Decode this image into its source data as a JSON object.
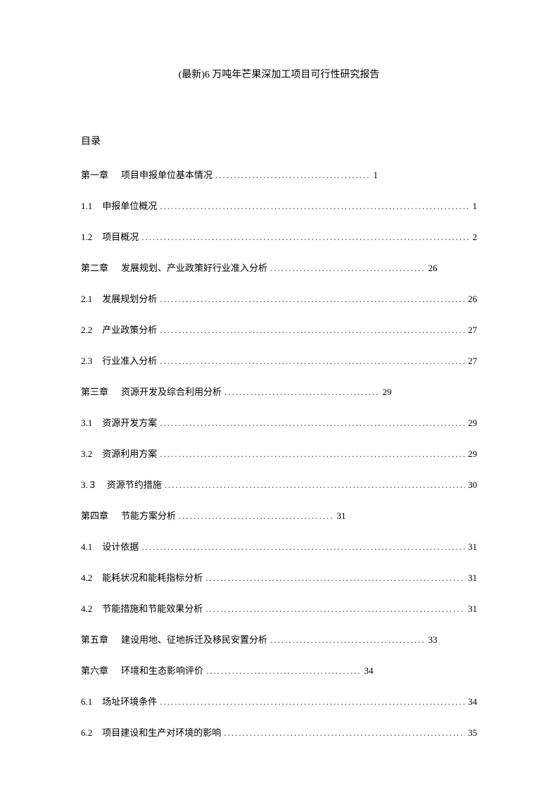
{
  "title": "(最新)6 万吨年芒果深加工项目可行性研究报告",
  "tocHeading": "目录",
  "entries": [
    {
      "type": "chapter",
      "num": "第一章",
      "label": "项目申报单位基本情况",
      "page": "1",
      "fill": false
    },
    {
      "type": "section",
      "num": "1.1",
      "label": "申报单位概况",
      "page": "1",
      "fill": true
    },
    {
      "type": "section",
      "num": "1.2",
      "label": "项目概况",
      "page": "2",
      "fill": true
    },
    {
      "type": "chapter",
      "num": "第二章",
      "label": "发展规划、产业政策好行业准入分析",
      "page": "26",
      "fill": false
    },
    {
      "type": "section",
      "num": "2.1",
      "label": "发展规划分析",
      "page": "26",
      "fill": true
    },
    {
      "type": "section",
      "num": "2.2",
      "label": "产业政策分析",
      "page": "27",
      "fill": true
    },
    {
      "type": "section",
      "num": "2.3",
      "label": "行业准入分析",
      "page": "27",
      "fill": true
    },
    {
      "type": "chapter",
      "num": "第三章",
      "label": "资源开发及综合利用分析",
      "page": "29",
      "fill": false
    },
    {
      "type": "section",
      "num": "3.1",
      "label": "资源开发方案",
      "page": "29",
      "fill": true
    },
    {
      "type": "section",
      "num": "3.2",
      "label": "资源利用方案",
      "page": "29",
      "fill": true
    },
    {
      "type": "section",
      "num": "3.３",
      "label": "资源节约措施",
      "page": "30",
      "fill": true
    },
    {
      "type": "chapter",
      "num": "第四章",
      "label": "节能方案分析",
      "page": "31",
      "fill": false
    },
    {
      "type": "section",
      "num": "4.1",
      "label": "设计依据",
      "page": "31",
      "fill": true
    },
    {
      "type": "section",
      "num": "4.2",
      "label": "能耗状况和能耗指标分析",
      "page": "31",
      "fill": true
    },
    {
      "type": "section",
      "num": "4.2",
      "label": "节能措施和节能效果分析",
      "page": "31",
      "fill": true
    },
    {
      "type": "chapter",
      "num": "第五章",
      "label": "建设用地、征地拆迁及移民安置分析",
      "page": "33",
      "fill": false
    },
    {
      "type": "chapter",
      "num": "第六章",
      "label": "环境和生态影响评价",
      "page": "34",
      "fill": false
    },
    {
      "type": "section",
      "num": "6.1",
      "label": "场址环境条件",
      "page": "34",
      "fill": true
    },
    {
      "type": "section",
      "num": "6.2",
      "label": "项目建设和生产对环境的影响",
      "page": "35",
      "fill": true
    }
  ],
  "shortDots": "..........................................",
  "longDots": "............................................................................................................................................................................"
}
